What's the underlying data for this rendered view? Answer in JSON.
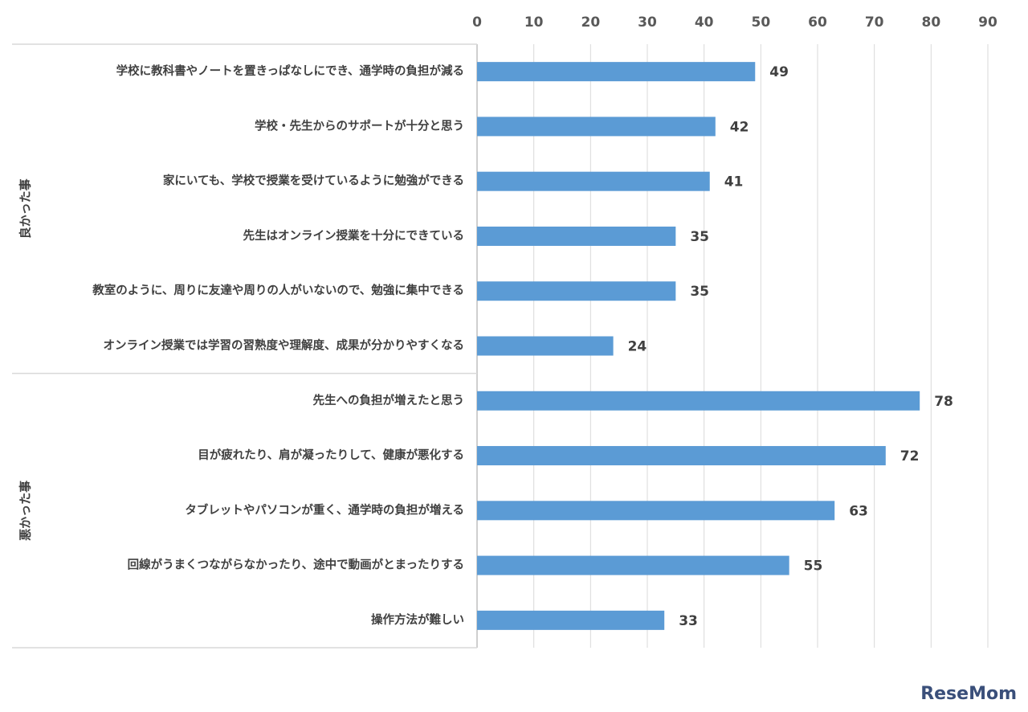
{
  "chart_data": {
    "type": "bar",
    "orientation": "horizontal",
    "color": "#5b9bd5",
    "xlim": [
      0,
      90
    ],
    "xticks": [
      0,
      10,
      20,
      30,
      40,
      50,
      60,
      70,
      80,
      90
    ],
    "grid": true,
    "groups": [
      {
        "name": "良かった事",
        "categories": [
          "学校に教科書やノートを置きっぱなしにでき、通学時の負担が減る",
          "学校・先生からのサポートが十分と思う",
          "家にいても、学校で授業を受けているように勉強ができる",
          "先生はオンライン授業を十分にできている",
          "教室のように、周りに友達や周りの人がいないので、勉強に集中できる",
          "オンライン授業では学習の習熟度や理解度、成果が分かりやすくなる"
        ],
        "values": [
          49,
          42,
          41,
          35,
          35,
          24
        ]
      },
      {
        "name": "悪かった事",
        "categories": [
          "先生への負担が増えたと思う",
          "目が疲れたり、肩が凝ったりして、健康が悪化する",
          "タブレットやパソコンが重く、通学時の負担が増える",
          "回線がうまくつながらなかったり、途中で動画がとまったりする",
          "操作方法が難しい"
        ],
        "values": [
          78,
          72,
          63,
          55,
          33
        ]
      }
    ],
    "watermark": "ReseMom"
  }
}
